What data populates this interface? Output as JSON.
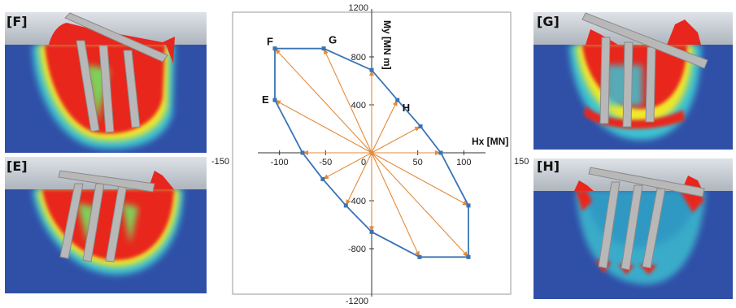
{
  "chart_data": {
    "type": "scatter",
    "title": "",
    "x_axis": {
      "label": "Hx [MN]",
      "range": [
        -150,
        150
      ],
      "ticks": [
        -150,
        -100,
        -50,
        0,
        50,
        100,
        150
      ]
    },
    "y_axis": {
      "label": "My [MN m]",
      "range": [
        -1200,
        1200
      ],
      "ticks": [
        -1200,
        -800,
        -400,
        0,
        400,
        800,
        1200
      ]
    },
    "grid": false,
    "envelope": {
      "color": "#3a73b5",
      "points": [
        [
          -105,
          870
        ],
        [
          -52,
          870
        ],
        [
          0,
          690
        ],
        [
          28,
          440
        ],
        [
          53,
          220
        ],
        [
          75,
          0
        ],
        [
          105,
          -440
        ],
        [
          105,
          -870
        ],
        [
          52,
          -870
        ],
        [
          0,
          -660
        ],
        [
          -28,
          -440
        ],
        [
          -53,
          -220
        ],
        [
          -75,
          0
        ],
        [
          -105,
          440
        ]
      ]
    },
    "rays": {
      "color": "#e38a38",
      "origin": [
        0,
        0
      ]
    },
    "point_labels": [
      {
        "text": "F",
        "x": -105,
        "y": 870
      },
      {
        "text": "G",
        "x": -52,
        "y": 870
      },
      {
        "text": "E",
        "x": -105,
        "y": 440
      },
      {
        "text": "H",
        "x": 28,
        "y": 440
      }
    ]
  },
  "panels": [
    {
      "label": "[F]",
      "side": "left",
      "row": "top"
    },
    {
      "label": "[E]",
      "side": "left",
      "row": "bottom"
    },
    {
      "label": "[G]",
      "side": "right",
      "row": "top"
    },
    {
      "label": "[H]",
      "side": "right",
      "row": "bottom"
    }
  ],
  "colors": {
    "soil": "#3050a8",
    "sky": "#c9cfd6",
    "plastic_high": "#e8261e",
    "plastic_mid": "#f0e62a",
    "plastic_low": "#3ec3d2",
    "structure": "#b8b8b8"
  }
}
